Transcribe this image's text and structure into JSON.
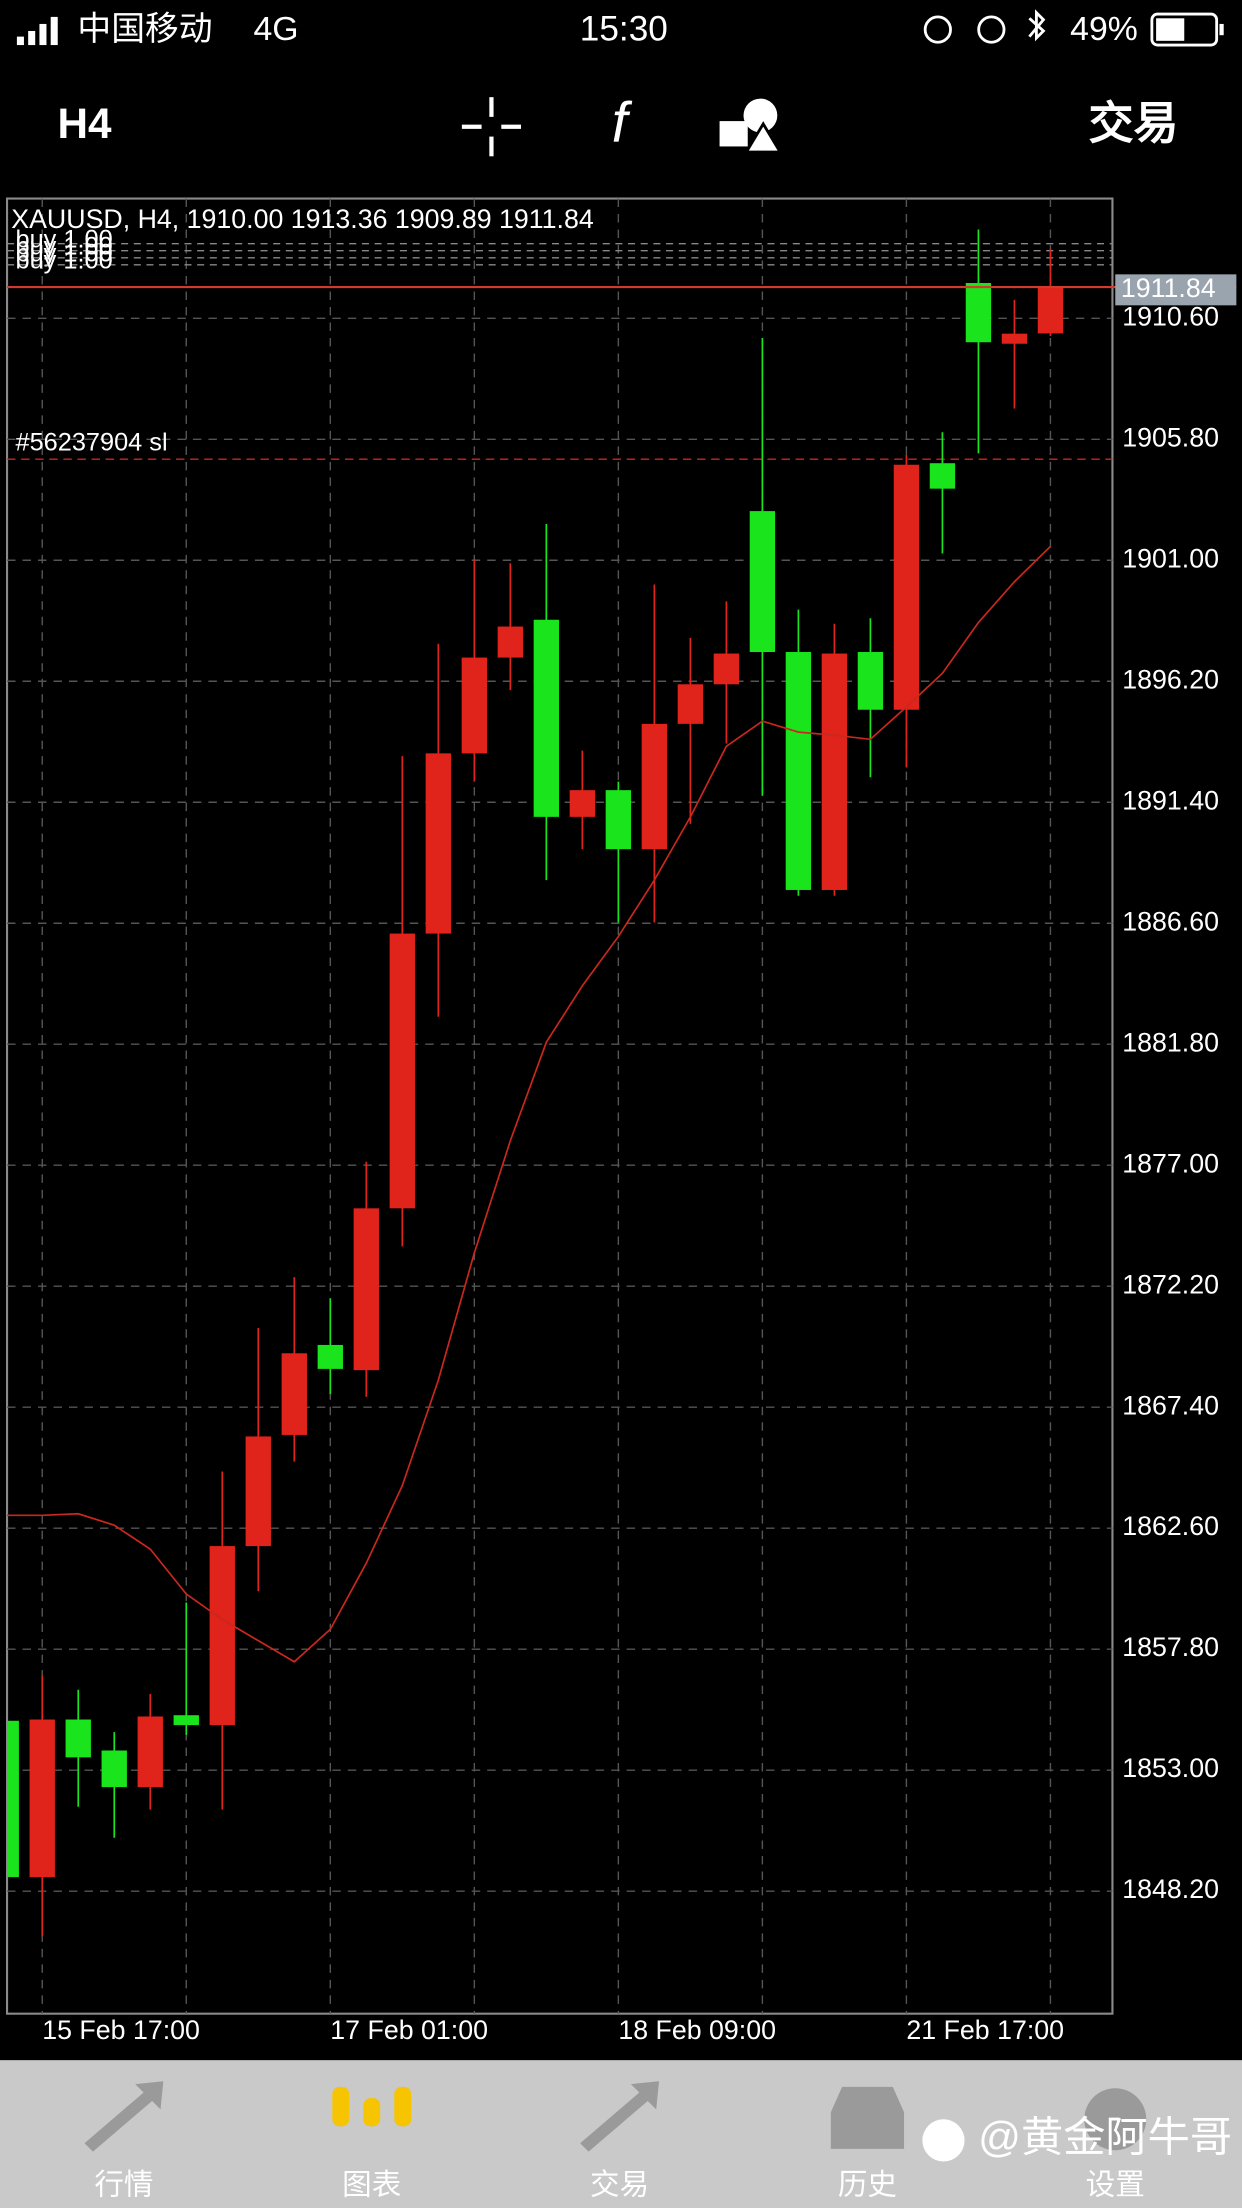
{
  "status_bar": {
    "carrier": "中国移动",
    "network": "4G",
    "time": "15:30",
    "battery": "49%"
  },
  "toolbar": {
    "timeframe": "H4",
    "trade": "交易"
  },
  "chart_data": {
    "type": "candlestick",
    "title": "XAUUSD, H4, 1910.00 1913.36 1909.89 1911.84",
    "categories": [
      null,
      "15 Feb 17:00",
      null,
      null,
      null,
      null,
      null,
      null,
      null,
      "17 Feb 01:00",
      null,
      null,
      null,
      null,
      null,
      null,
      null,
      "18 Feb 09:00",
      null,
      null,
      null,
      null,
      null,
      null,
      null,
      "21 Feb 17:00",
      null,
      null,
      null,
      null
    ],
    "open": [
      1854.96,
      1848.76,
      1855.01,
      1853.78,
      1852.33,
      1855.18,
      1854.79,
      1861.89,
      1866.3,
      1869.87,
      1868.87,
      1875.29,
      1886.19,
      1893.34,
      1897.14,
      1898.64,
      1890.82,
      1891.88,
      1889.54,
      1894.51,
      1896.08,
      1902.95,
      1897.36,
      1887.92,
      1897.36,
      1895.07,
      1904.85,
      1912.0,
      1909.59,
      1910.0
    ],
    "high": [
      1854.96,
      1856.75,
      1856.19,
      1854.51,
      1856.02,
      1859.65,
      1864.85,
      1870.54,
      1872.56,
      1871.72,
      1877.14,
      1893.23,
      1897.69,
      1901.05,
      1900.88,
      1902.44,
      1893.45,
      1892.22,
      1900.04,
      1897.92,
      1899.37,
      1909.82,
      1899.04,
      1898.48,
      1898.7,
      1905.18,
      1906.08,
      1914.12,
      1911.33,
      1913.36
    ],
    "low": [
      1848.76,
      1846.41,
      1851.55,
      1850.32,
      1851.44,
      1854.4,
      1851.44,
      1860.1,
      1865.24,
      1867.92,
      1867.81,
      1873.78,
      1882.89,
      1892.22,
      1895.85,
      1888.31,
      1889.54,
      1886.63,
      1886.63,
      1890.54,
      1893.73,
      1891.66,
      1887.69,
      1887.69,
      1892.39,
      1892.78,
      1901.27,
      1905.24,
      1907.02,
      1909.89
    ],
    "close": [
      1848.76,
      1855.01,
      1853.51,
      1852.33,
      1855.13,
      1854.79,
      1861.89,
      1866.24,
      1869.54,
      1868.92,
      1875.29,
      1886.19,
      1893.34,
      1897.14,
      1898.37,
      1890.82,
      1891.88,
      1889.54,
      1894.51,
      1896.08,
      1897.3,
      1897.36,
      1887.92,
      1897.3,
      1895.07,
      1904.79,
      1903.84,
      1909.65,
      1909.99,
      1911.84
    ],
    "up_color": "#e0231b",
    "down_color": "#19e41c",
    "ma": {
      "color": "#c8281e",
      "values": [
        1863.11,
        1863.11,
        1863.17,
        1862.72,
        1861.77,
        1859.99,
        1858.98,
        1858.14,
        1857.3,
        1858.59,
        1861.21,
        1864.29,
        1868.48,
        1873.51,
        1877.97,
        1881.88,
        1884.12,
        1886.07,
        1888.31,
        1890.82,
        1893.62,
        1894.62,
        1894.18,
        1894.06,
        1893.9,
        1895.18,
        1896.52,
        1898.53,
        1900.15,
        1901.55
      ]
    },
    "ylim": [
      1843.34,
      1915.35
    ],
    "yticks": [
      {
        "value": 1848.2,
        "label": "1848.20"
      },
      {
        "value": 1853,
        "label": "1853.00"
      },
      {
        "value": 1857.8,
        "label": "1857.80"
      },
      {
        "value": 1862.6,
        "label": "1862.60"
      },
      {
        "value": 1867.4,
        "label": "1867.40"
      },
      {
        "value": 1872.2,
        "label": "1872.20"
      },
      {
        "value": 1877,
        "label": "1877.00"
      },
      {
        "value": 1881.8,
        "label": "1881.80"
      },
      {
        "value": 1886.6,
        "label": "1886.60"
      },
      {
        "value": 1891.4,
        "label": "1891.40"
      },
      {
        "value": 1896.2,
        "label": "1896.20"
      },
      {
        "value": 1901,
        "label": "1901.00"
      },
      {
        "value": 1905.8,
        "label": "1905.80"
      },
      {
        "value": 1910.6,
        "label": "1910.60"
      }
    ],
    "grid": true,
    "current_price": {
      "value": 1911.84,
      "label": "1911.84"
    },
    "orders": [
      {
        "label": "buy 1.00",
        "price": 1913.56
      },
      {
        "label": "buy 1.00",
        "price": 1913.28
      },
      {
        "label": "buy 1.00",
        "price": 1913.0
      },
      {
        "label": "buy 1.00",
        "price": 1912.72
      }
    ],
    "stop_loss": {
      "label": "#56237904 sl",
      "price": 1905.01
    }
  },
  "tab_bar": {
    "tabs": [
      "行情",
      "图表",
      "交易",
      "历史",
      "设置"
    ],
    "active": 1
  },
  "watermark": "@黄金阿牛哥"
}
